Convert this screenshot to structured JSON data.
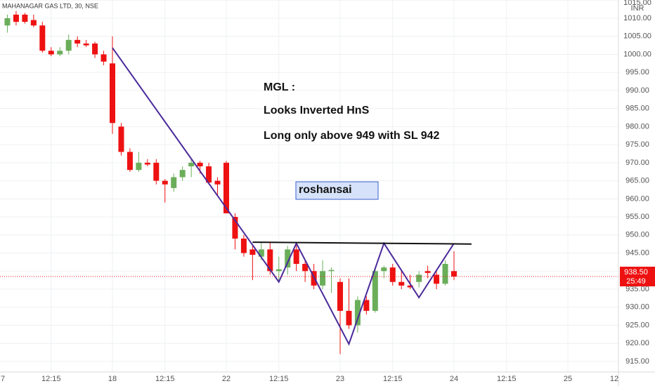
{
  "chart_data": {
    "type": "candlestick",
    "title": "MAHANAGAR GAS LTD, 30, NSE",
    "currency": "INR",
    "annotations": [
      "MGL :",
      "Looks Inverted HnS",
      "Long only above 949 with SL 942"
    ],
    "author": "roshansai",
    "last_price": {
      "value": 938.5,
      "label": "938.50"
    },
    "countdown": "25:49",
    "up_color": "#6aae5a",
    "down_color": "#ee1111",
    "grid": true,
    "xlim": [
      -12.84,
      57.78
    ],
    "ylim": [
      912.08,
      1015.05
    ],
    "xticks": [
      {
        "value": -13,
        "label": "7"
      },
      {
        "value": -7,
        "label": "12:15"
      },
      {
        "value": 0,
        "label": "18"
      },
      {
        "value": 6,
        "label": "12:15"
      },
      {
        "value": 13,
        "label": "22"
      },
      {
        "value": 19,
        "label": "12:15"
      },
      {
        "value": 26,
        "label": "23"
      },
      {
        "value": 32,
        "label": "12:15"
      },
      {
        "value": 39,
        "label": "24"
      },
      {
        "value": 45,
        "label": "12:15"
      },
      {
        "value": 52,
        "label": "25"
      },
      {
        "value": 58,
        "label": "12"
      }
    ],
    "yticks": [
      {
        "value": 1015,
        "label": "1015.00"
      },
      {
        "value": 1010,
        "label": "1010.00"
      },
      {
        "value": 1005,
        "label": "1005.00"
      },
      {
        "value": 1000,
        "label": "1000.00"
      },
      {
        "value": 995,
        "label": "995.00"
      },
      {
        "value": 990,
        "label": "990.00"
      },
      {
        "value": 985,
        "label": "985.00"
      },
      {
        "value": 980,
        "label": "980.00"
      },
      {
        "value": 975,
        "label": "975.00"
      },
      {
        "value": 970,
        "label": "970.00"
      },
      {
        "value": 965,
        "label": "965.00"
      },
      {
        "value": 960,
        "label": "960.00"
      },
      {
        "value": 955,
        "label": "955.00"
      },
      {
        "value": 950,
        "label": "950.00"
      },
      {
        "value": 945,
        "label": "945.00"
      },
      {
        "value": 940,
        "label": "940.00"
      },
      {
        "value": 935,
        "label": "935.00"
      },
      {
        "value": 930,
        "label": "930.00"
      },
      {
        "value": 925,
        "label": "925.00"
      },
      {
        "value": 920,
        "label": "920.00"
      },
      {
        "value": 915,
        "label": "915.00"
      }
    ],
    "x": [
      -12,
      -11,
      -10,
      -9,
      -8,
      -7,
      -6,
      -5,
      -4,
      -3,
      -2,
      -1,
      0,
      1,
      2,
      3,
      4,
      5,
      6,
      7,
      8,
      9,
      10,
      11,
      12,
      13,
      14,
      15,
      16,
      17,
      18,
      19,
      20,
      21,
      22,
      23,
      24,
      25,
      26,
      27,
      28,
      29,
      30,
      31,
      32,
      33,
      34,
      35,
      36,
      37,
      38,
      39
    ],
    "open": [
      1008,
      1011,
      1011,
      1009.5,
      1008,
      1001,
      1000,
      1001,
      1004,
      1003,
      1003,
      1000,
      997.5,
      980,
      973,
      968,
      970,
      970,
      965,
      963,
      966,
      969,
      970,
      969,
      965,
      970,
      955,
      949,
      946,
      944,
      946,
      940,
      941,
      946,
      942,
      940,
      936,
      940,
      937,
      929,
      925,
      932,
      929,
      940,
      941,
      937,
      936,
      937,
      940,
      939,
      936.5,
      940
    ],
    "high": [
      1011,
      1012,
      1011.5,
      1011,
      1009,
      1002,
      1002,
      1005.5,
      1005,
      1004,
      1003.5,
      1001,
      1005,
      981,
      974,
      973,
      971,
      971,
      965.5,
      967,
      969,
      971,
      970.5,
      970,
      966,
      970.5,
      956,
      950,
      947,
      948,
      948,
      944,
      947,
      948,
      943,
      942,
      943,
      941,
      938,
      938,
      933,
      933,
      941,
      941.5,
      942,
      940,
      939,
      940,
      941.5,
      940,
      943,
      945.5
    ],
    "low": [
      1006,
      1008,
      1008.5,
      1007.5,
      1000.5,
      999.5,
      999.5,
      1000,
      1002,
      1002,
      999,
      997,
      978,
      972,
      967.5,
      967.5,
      969,
      964,
      959,
      962,
      965,
      966,
      967,
      964,
      961,
      956,
      946,
      944,
      937.5,
      943,
      939,
      937,
      939,
      940,
      937,
      935,
      935,
      934,
      917,
      924,
      923,
      928,
      928.5,
      938,
      936,
      935,
      935,
      935.5,
      938,
      935,
      936,
      937.5
    ],
    "close": [
      1010,
      1009,
      1009,
      1008,
      1001,
      1000,
      1001,
      1004,
      1003,
      1002.5,
      1000,
      998,
      981,
      973,
      968,
      970,
      969.5,
      965,
      964,
      966,
      968,
      970,
      969,
      964.5,
      964,
      956,
      949,
      945,
      944.5,
      946,
      940,
      940.5,
      946,
      942,
      940,
      936,
      940,
      940.3,
      929,
      925,
      932,
      929,
      940,
      941,
      937,
      936,
      935.5,
      939,
      939.5,
      936.5,
      942,
      938.5
    ],
    "drawings": [
      {
        "color": "#4a2a9a",
        "points": [
          [
            0,
            1001.8
          ],
          [
            19,
            937
          ],
          [
            21,
            947.7
          ],
          [
            27,
            919.8
          ],
          [
            31,
            947.7
          ],
          [
            35,
            932.7
          ],
          [
            39,
            947.7
          ]
        ]
      },
      {
        "color": "#111111",
        "points": [
          [
            16,
            948
          ],
          [
            41,
            947.5
          ]
        ]
      }
    ]
  }
}
